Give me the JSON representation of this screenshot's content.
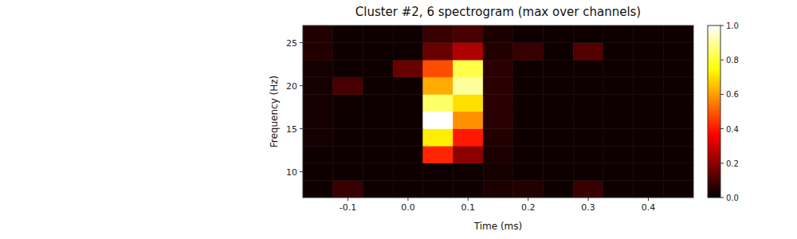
{
  "chart_data": {
    "type": "heatmap",
    "title": "Cluster #2, 6 spectrogram (max over channels)",
    "x_label": "Time (ms)",
    "y_label": "Frequency (Hz)",
    "x_edges": [
      -0.175,
      -0.125,
      -0.075,
      -0.025,
      0.025,
      0.075,
      0.125,
      0.175,
      0.225,
      0.275,
      0.325,
      0.375,
      0.425,
      0.475
    ],
    "y_edges": [
      7,
      9,
      11,
      13,
      15,
      17,
      19,
      21,
      23,
      25,
      27
    ],
    "cells": [
      [
        0.02,
        0.08,
        0.02,
        0.02,
        0.02,
        0.02,
        0.04,
        0.05,
        0.02,
        0.08,
        0.02,
        0.02,
        0.02
      ],
      [
        0.02,
        0.02,
        0.02,
        0.02,
        0.02,
        0.02,
        0.03,
        0.02,
        0.02,
        0.02,
        0.02,
        0.02,
        0.02
      ],
      [
        0.02,
        0.02,
        0.02,
        0.02,
        0.42,
        0.2,
        0.04,
        0.02,
        0.02,
        0.02,
        0.02,
        0.02,
        0.02
      ],
      [
        0.03,
        0.02,
        0.02,
        0.02,
        0.72,
        0.4,
        0.05,
        0.02,
        0.02,
        0.02,
        0.02,
        0.02,
        0.02
      ],
      [
        0.03,
        0.02,
        0.02,
        0.02,
        1.0,
        0.58,
        0.06,
        0.02,
        0.02,
        0.02,
        0.02,
        0.02,
        0.02
      ],
      [
        0.03,
        0.02,
        0.02,
        0.02,
        0.85,
        0.7,
        0.06,
        0.02,
        0.02,
        0.02,
        0.02,
        0.02,
        0.02
      ],
      [
        0.03,
        0.1,
        0.02,
        0.02,
        0.62,
        0.9,
        0.06,
        0.02,
        0.02,
        0.02,
        0.02,
        0.02,
        0.02
      ],
      [
        0.03,
        0.02,
        0.02,
        0.15,
        0.48,
        0.82,
        0.06,
        0.02,
        0.02,
        0.02,
        0.02,
        0.02,
        0.02
      ],
      [
        0.05,
        0.02,
        0.02,
        0.02,
        0.15,
        0.25,
        0.05,
        0.08,
        0.02,
        0.12,
        0.02,
        0.02,
        0.02
      ],
      [
        0.05,
        0.02,
        0.02,
        0.02,
        0.08,
        0.1,
        0.04,
        0.02,
        0.02,
        0.02,
        0.02,
        0.02,
        0.02
      ]
    ],
    "xlim": [
      -0.175,
      0.475
    ],
    "ylim": [
      7,
      27
    ],
    "xticks": [
      -0.1,
      {
        "value": 0.0,
        "label": "0.0"
      },
      0.1,
      0.2,
      0.3,
      0.4
    ],
    "yticks": [
      10,
      15,
      20,
      25
    ],
    "color_range": [
      0,
      1.0
    ],
    "color_ticks": [
      {
        "value": 0.0,
        "label": "0.0"
      },
      0.2,
      0.4,
      0.6,
      0.8,
      {
        "value": 1.0,
        "label": "1.0"
      }
    ]
  }
}
